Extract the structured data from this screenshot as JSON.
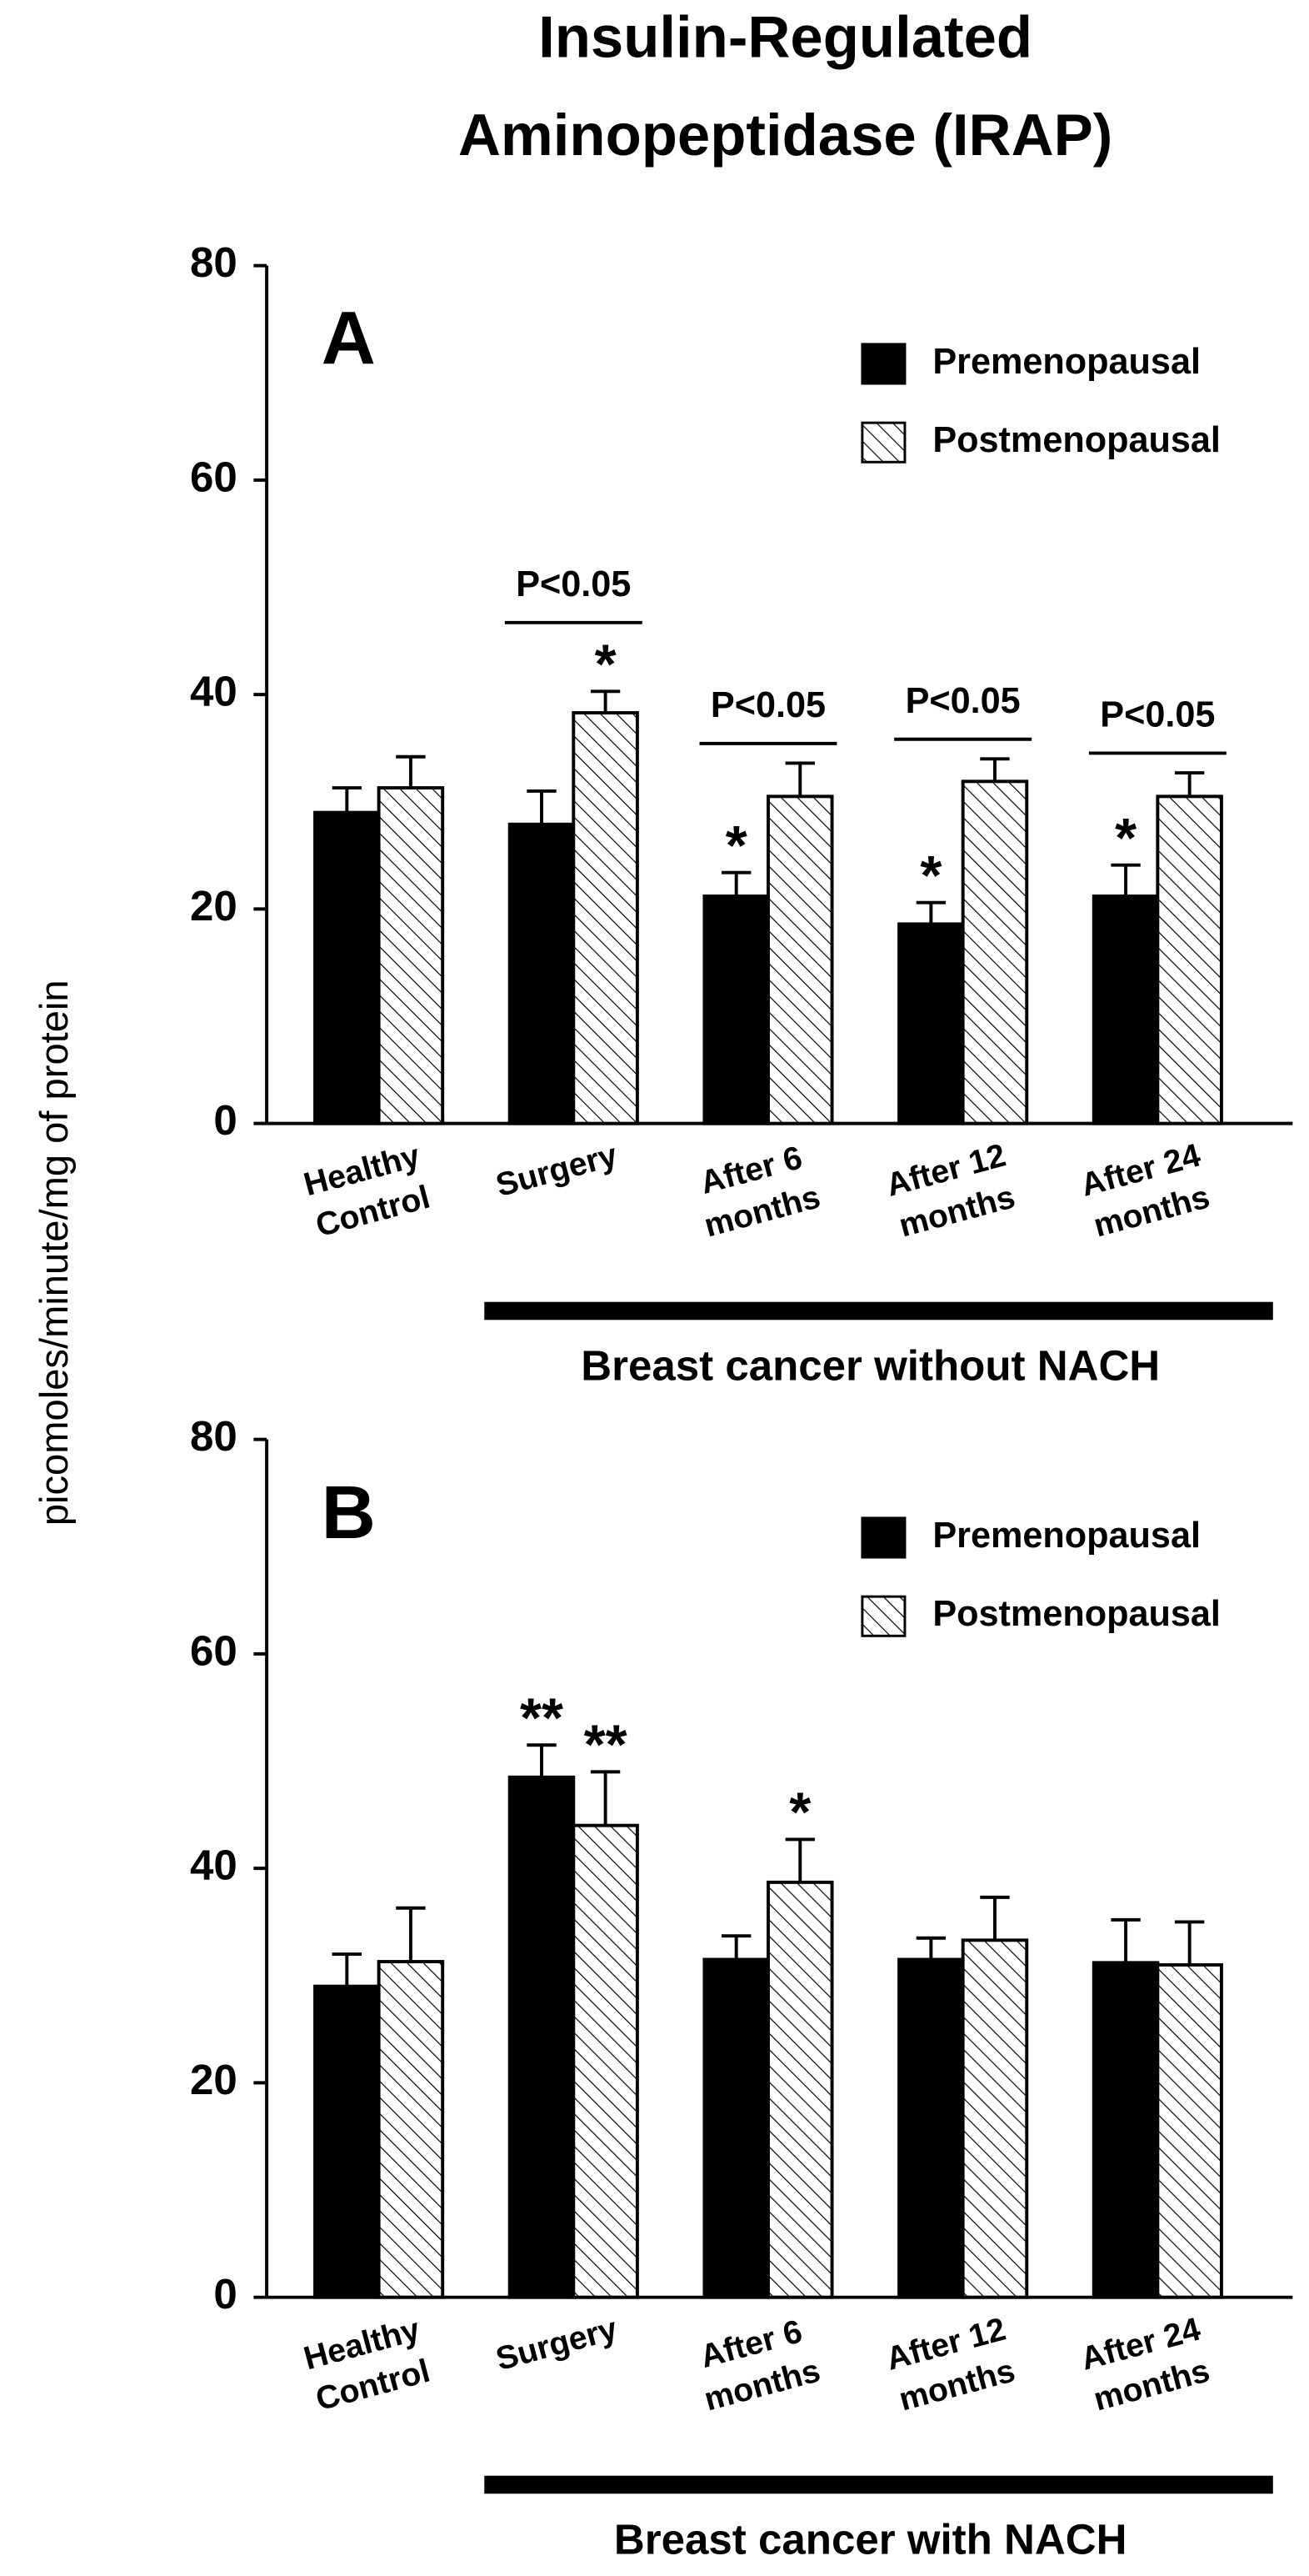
{
  "title": [
    "Insulin-Regulated",
    "Aminopeptidase (IRAP)"
  ],
  "ylabel": "picomoles/minute/mg of protein",
  "chart_data": [
    {
      "type": "bar",
      "panel": "A",
      "categories": [
        "Healthy Control",
        "Surgery",
        "After 6 months",
        "After 12 months",
        "After 24 months"
      ],
      "series": [
        {
          "name": "Premenopausal",
          "color": "#000000",
          "values": [
            29,
            27.9,
            21.2,
            18.6,
            21.2
          ],
          "errors": [
            2.3,
            3.1,
            2.2,
            2,
            2.9
          ],
          "markers": [
            null,
            null,
            "*",
            "*",
            "*"
          ]
        },
        {
          "name": "Postmenopausal",
          "color": "#000000",
          "pattern": "hatch",
          "values": [
            31.3,
            38.3,
            30.5,
            31.9,
            30.5
          ],
          "errors": [
            2.9,
            2,
            3.1,
            2.1,
            2.2
          ],
          "markers": [
            null,
            "*",
            null,
            null,
            null
          ]
        }
      ],
      "comparisons": [
        null,
        "P<0.05",
        "P<0.05",
        "P<0.05",
        "P<0.05"
      ],
      "group_label": "Breast cancer without NACH",
      "ylim": [
        0,
        80
      ],
      "yticks": [
        0,
        20,
        40,
        60,
        80
      ],
      "legend": "upper right"
    },
    {
      "type": "bar",
      "panel": "B",
      "categories": [
        "Healthy Control",
        "Surgery",
        "After 6 months",
        "After 12 months",
        "After 24 months"
      ],
      "series": [
        {
          "name": "Premenopausal",
          "color": "#000000",
          "values": [
            29,
            48.5,
            31.5,
            31.5,
            31.2
          ],
          "errors": [
            3,
            3,
            2.2,
            2,
            4
          ],
          "markers": [
            null,
            "**",
            null,
            null,
            null
          ]
        },
        {
          "name": "Postmenopausal",
          "color": "#000000",
          "pattern": "hatch",
          "values": [
            31.3,
            44,
            38.7,
            33.3,
            31
          ],
          "errors": [
            5,
            5,
            4,
            4,
            4
          ],
          "markers": [
            null,
            "**",
            "*",
            null,
            null
          ]
        }
      ],
      "comparisons": [
        null,
        null,
        null,
        null,
        null
      ],
      "group_label": "Breast cancer with NACH",
      "ylim": [
        0,
        80
      ],
      "yticks": [
        0,
        20,
        40,
        60,
        80
      ],
      "legend": "upper right"
    }
  ]
}
